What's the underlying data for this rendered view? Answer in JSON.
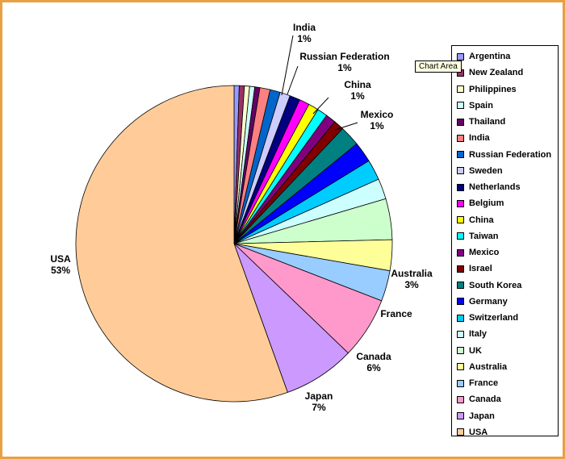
{
  "tooltip": "Chart Area",
  "chart_data": {
    "type": "pie",
    "start_angle_deg": 0,
    "direction": "clockwise",
    "slices": [
      {
        "name": "Argentina",
        "value": 0.5,
        "color": "#9999ff"
      },
      {
        "name": "New Zealand",
        "value": 0.5,
        "color": "#993366"
      },
      {
        "name": "Philippines",
        "value": 0.5,
        "color": "#ffffcc"
      },
      {
        "name": "Spain",
        "value": 0.5,
        "color": "#ccffff"
      },
      {
        "name": "Thailand",
        "value": 0.5,
        "color": "#660066"
      },
      {
        "name": "India",
        "value": 1,
        "color": "#ff8080",
        "label": "1%"
      },
      {
        "name": "Russian Federation",
        "value": 1,
        "color": "#0066cc",
        "label": "1%"
      },
      {
        "name": "Sweden",
        "value": 1,
        "color": "#ccccff"
      },
      {
        "name": "Netherlands",
        "value": 1,
        "color": "#000080"
      },
      {
        "name": "Belgium",
        "value": 1,
        "color": "#ff00ff"
      },
      {
        "name": "China",
        "value": 1,
        "color": "#ffff00",
        "label": "1%"
      },
      {
        "name": "Taiwan",
        "value": 1,
        "color": "#00ffff"
      },
      {
        "name": "Mexico",
        "value": 1,
        "color": "#800080",
        "label": "1%"
      },
      {
        "name": "Israel",
        "value": 1,
        "color": "#800000"
      },
      {
        "name": "South Korea",
        "value": 2,
        "color": "#008080"
      },
      {
        "name": "Germany",
        "value": 2,
        "color": "#0000ff"
      },
      {
        "name": "Switzerland",
        "value": 2,
        "color": "#00ccff"
      },
      {
        "name": "Italy",
        "value": 2,
        "color": "#ccffff"
      },
      {
        "name": "UK",
        "value": 4,
        "color": "#ccffcc"
      },
      {
        "name": "Australia",
        "value": 3,
        "color": "#ffff99",
        "label": "3%"
      },
      {
        "name": "France",
        "value": 3,
        "color": "#99ccff",
        "label": ""
      },
      {
        "name": "Canada",
        "value": 6,
        "color": "#ff99cc",
        "label": "6%"
      },
      {
        "name": "Japan",
        "value": 7,
        "color": "#cc99ff",
        "label": "7%"
      },
      {
        "name": "USA",
        "value": 53,
        "color": "#ffcc99",
        "label": "53%"
      }
    ]
  }
}
